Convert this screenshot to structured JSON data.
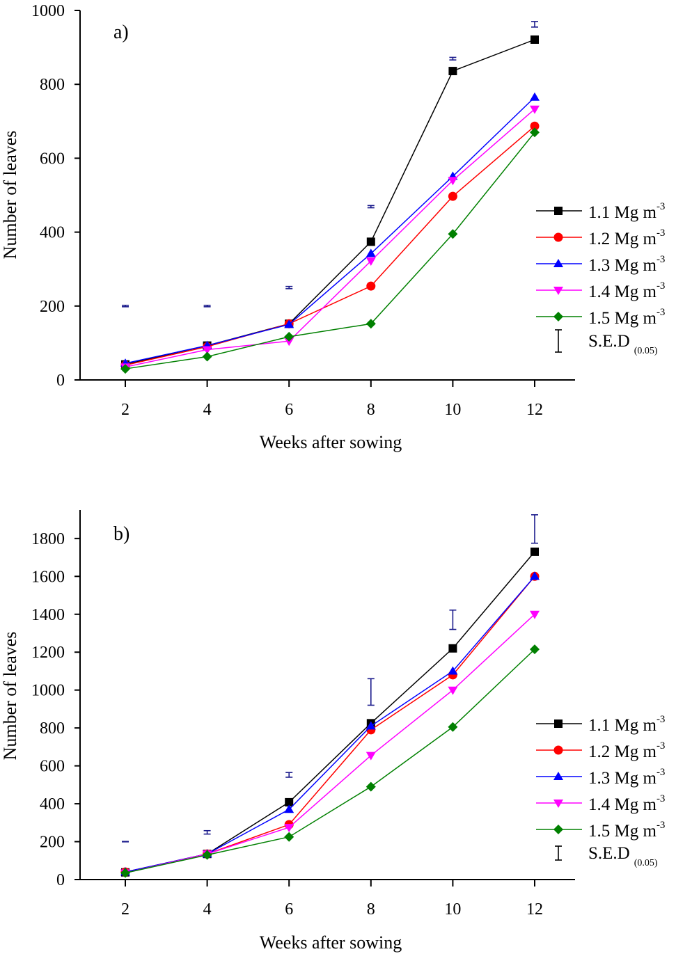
{
  "chart_data": [
    {
      "type": "line",
      "panel_label": "a)",
      "xlabel": "Weeks after sowing",
      "ylabel": "Number of leaves",
      "x": [
        2,
        4,
        6,
        8,
        10,
        12
      ],
      "xticks": [
        "2",
        "4",
        "6",
        "8",
        "10",
        "12"
      ],
      "yticks": [
        0,
        200,
        400,
        600,
        800,
        1000
      ],
      "ylim": [
        0,
        1000
      ],
      "grid": false,
      "legend_placement": "right",
      "series": [
        {
          "name": "1.1 Mg m",
          "sup": "-3",
          "color": "#000000",
          "marker": "square",
          "values": [
            42,
            93,
            152,
            374,
            836,
            921
          ]
        },
        {
          "name": "1.2 Mg m",
          "sup": "-3",
          "color": "#ff0000",
          "marker": "circle",
          "values": [
            40,
            90,
            152,
            254,
            497,
            687
          ]
        },
        {
          "name": "1.3 Mg m",
          "sup": "-3",
          "color": "#0000ff",
          "marker": "triangle-up",
          "values": [
            45,
            93,
            150,
            342,
            551,
            765
          ]
        },
        {
          "name": "1.4 Mg m",
          "sup": "-3",
          "color": "#ff00ff",
          "marker": "triangle-down",
          "values": [
            35,
            82,
            105,
            322,
            540,
            733
          ]
        },
        {
          "name": "1.5 Mg m",
          "sup": "-3",
          "color": "#008000",
          "marker": "diamond",
          "values": [
            30,
            63,
            117,
            152,
            395,
            670
          ]
        }
      ],
      "sed": {
        "name": "S.E.D",
        "sub": "(0.05)",
        "color": "#1a1a8c",
        "ranges": [
          [
            198,
            202
          ],
          [
            198,
            202
          ],
          [
            247,
            253
          ],
          [
            466,
            472
          ],
          [
            866,
            873
          ],
          [
            955,
            970
          ]
        ]
      }
    },
    {
      "type": "line",
      "panel_label": "b)",
      "xlabel": "Weeks after sowing",
      "ylabel": "Number of leaves",
      "x": [
        2,
        4,
        6,
        8,
        10,
        12
      ],
      "xticks": [
        "2",
        "4",
        "6",
        "8",
        "10",
        "12"
      ],
      "yticks": [
        0,
        200,
        400,
        600,
        800,
        1000,
        1200,
        1400,
        1600,
        1800
      ],
      "ylim": [
        0,
        1950
      ],
      "grid": false,
      "legend_placement": "right",
      "series": [
        {
          "name": "1.1 Mg m",
          "sup": "-3",
          "color": "#000000",
          "marker": "square",
          "values": [
            38,
            135,
            408,
            825,
            1220,
            1730
          ]
        },
        {
          "name": "1.2 Mg m",
          "sup": "-3",
          "color": "#ff0000",
          "marker": "circle",
          "values": [
            40,
            135,
            290,
            790,
            1080,
            1600
          ]
        },
        {
          "name": "1.3 Mg m",
          "sup": "-3",
          "color": "#0000ff",
          "marker": "triangle-up",
          "values": [
            40,
            135,
            370,
            810,
            1100,
            1600
          ]
        },
        {
          "name": "1.4 Mg m",
          "sup": "-3",
          "color": "#ff00ff",
          "marker": "triangle-down",
          "values": [
            35,
            135,
            275,
            655,
            1000,
            1400
          ]
        },
        {
          "name": "1.5 Mg m",
          "sup": "-3",
          "color": "#008000",
          "marker": "diamond",
          "values": [
            35,
            130,
            225,
            490,
            805,
            1215
          ]
        }
      ],
      "sed": {
        "name": "S.E.D",
        "sub": "(0.05)",
        "color": "#1a1a8c",
        "ranges": [
          [
            199,
            201
          ],
          [
            240,
            258
          ],
          [
            540,
            565
          ],
          [
            920,
            1060
          ],
          [
            1320,
            1422
          ],
          [
            1775,
            1925
          ]
        ]
      }
    }
  ]
}
